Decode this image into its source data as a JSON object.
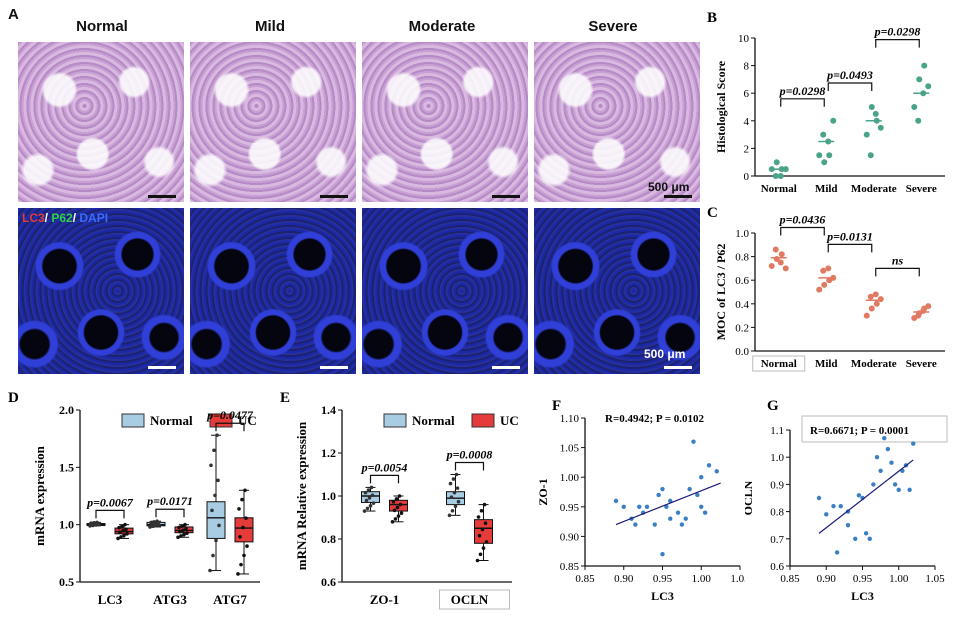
{
  "panelA": {
    "label": "A",
    "columns": [
      "Normal",
      "Mild",
      "Moderate",
      "Severe"
    ],
    "scale_he": "500 μm",
    "scale_fl": "500 μm",
    "stain_lc3": "LC3",
    "stain_sep1": "/ ",
    "stain_p62": "P62",
    "stain_sep2": "/ ",
    "stain_dapi": "DAPI"
  },
  "colors": {
    "normal_box": "#a8cde3",
    "uc_box": "#e63b3b",
    "green_dot": "#4aa38a",
    "salmon_dot": "#e07a62",
    "scatter_dot": "#3a7fc4",
    "fit_line": "#1b1b7a"
  },
  "chart_data": [
    {
      "panel": "B",
      "type": "scatter",
      "ylabel": "Histological Score",
      "ylim": [
        0,
        10
      ],
      "yticks": [
        "0",
        "2",
        "4",
        "6",
        "8",
        "10"
      ],
      "categories": [
        "Normal",
        "Mild",
        "Moderate",
        "Severe"
      ],
      "points": [
        [
          0.5,
          1,
          0.5,
          0,
          0,
          0.5
        ],
        [
          1.5,
          1,
          1.5,
          3,
          2.5,
          4
        ],
        [
          3,
          5,
          4,
          1.5,
          4.5,
          3.5
        ],
        [
          5,
          7,
          8,
          4,
          6,
          6.5
        ]
      ],
      "means": [
        0.5,
        2.5,
        4,
        6
      ],
      "comparisons": [
        {
          "from": 0,
          "to": 1,
          "label": "p=0.0298"
        },
        {
          "from": 1,
          "to": 2,
          "label": "p=0.0493"
        },
        {
          "from": 2,
          "to": 3,
          "label": "p=0.0298"
        }
      ]
    },
    {
      "panel": "C",
      "type": "scatter",
      "ylabel": "MOC of LC3 / P62",
      "ylim": [
        0.0,
        1.0
      ],
      "yticks": [
        "0.0",
        "0.2",
        "0.4",
        "0.6",
        "0.8",
        "1.0"
      ],
      "categories": [
        "Normal",
        "Mild",
        "Moderate",
        "Severe"
      ],
      "points": [
        [
          0.72,
          0.78,
          0.82,
          0.86,
          0.75,
          0.7
        ],
        [
          0.52,
          0.56,
          0.6,
          0.68,
          0.7,
          0.62
        ],
        [
          0.3,
          0.36,
          0.4,
          0.46,
          0.48,
          0.44
        ],
        [
          0.28,
          0.32,
          0.36,
          0.3,
          0.34,
          0.38
        ]
      ],
      "means": [
        0.79,
        0.62,
        0.43,
        0.33
      ],
      "comparisons": [
        {
          "from": 0,
          "to": 1,
          "label": "p=0.0436"
        },
        {
          "from": 1,
          "to": 2,
          "label": "p=0.0131"
        },
        {
          "from": 2,
          "to": 3,
          "label": "ns"
        }
      ]
    },
    {
      "panel": "D",
      "type": "box",
      "ylabel": "mRNA expression",
      "ylim": [
        0.5,
        2.0
      ],
      "yticks": [
        "0.5",
        "1.0",
        "1.5",
        "2.0"
      ],
      "categories": [
        "LC3",
        "ATG3",
        "ATG7"
      ],
      "legend": [
        "Normal",
        "UC"
      ],
      "boxes": [
        {
          "group": "LC3",
          "series": "Normal",
          "min": 0.99,
          "q1": 1.0,
          "median": 1.0,
          "q3": 1.01,
          "max": 1.02
        },
        {
          "group": "LC3",
          "series": "UC",
          "min": 0.88,
          "q1": 0.92,
          "median": 0.94,
          "q3": 0.97,
          "max": 1.0
        },
        {
          "group": "ATG3",
          "series": "Normal",
          "min": 0.98,
          "q1": 0.99,
          "median": 1.0,
          "q3": 1.02,
          "max": 1.03
        },
        {
          "group": "ATG3",
          "series": "UC",
          "min": 0.89,
          "q1": 0.93,
          "median": 0.95,
          "q3": 0.98,
          "max": 1.0
        },
        {
          "group": "ATG7",
          "series": "Normal",
          "min": 0.6,
          "q1": 0.88,
          "median": 1.06,
          "q3": 1.2,
          "max": 1.78
        },
        {
          "group": "ATG7",
          "series": "UC",
          "min": 0.57,
          "q1": 0.85,
          "median": 0.97,
          "q3": 1.06,
          "max": 1.3
        }
      ],
      "comparisons": [
        {
          "group": 0,
          "label": "p=0.0067"
        },
        {
          "group": 1,
          "label": "p=0.0171"
        },
        {
          "group": 2,
          "label": "p=0.0477"
        }
      ]
    },
    {
      "panel": "E",
      "type": "box",
      "ylabel": "mRNA Relative expression",
      "ylim": [
        0.6,
        1.4
      ],
      "yticks": [
        "0.6",
        "0.8",
        "1.0",
        "1.2",
        "1.4"
      ],
      "categories": [
        "ZO-1",
        "OCLN"
      ],
      "legend": [
        "Normal",
        "UC"
      ],
      "boxes": [
        {
          "group": "ZO-1",
          "series": "Normal",
          "min": 0.93,
          "q1": 0.97,
          "median": 1.0,
          "q3": 1.02,
          "max": 1.04
        },
        {
          "group": "ZO-1",
          "series": "UC",
          "min": 0.88,
          "q1": 0.93,
          "median": 0.96,
          "q3": 0.98,
          "max": 1.0
        },
        {
          "group": "OCLN",
          "series": "Normal",
          "min": 0.91,
          "q1": 0.96,
          "median": 0.99,
          "q3": 1.02,
          "max": 1.1
        },
        {
          "group": "OCLN",
          "series": "UC",
          "min": 0.7,
          "q1": 0.78,
          "median": 0.85,
          "q3": 0.89,
          "max": 0.96
        }
      ],
      "comparisons": [
        {
          "group": 0,
          "label": "p=0.0054"
        },
        {
          "group": 1,
          "label": "p=0.0008"
        }
      ]
    },
    {
      "panel": "F",
      "type": "scatter",
      "xlabel": "LC3",
      "ylabel": "ZO-1",
      "annotation": "R=0.4942; P = 0.0102",
      "xlim": [
        0.85,
        1.05
      ],
      "ylim": [
        0.85,
        1.1
      ],
      "xticks": [
        "0.85",
        "0.90",
        "0.95",
        "1.00",
        "1.05"
      ],
      "yticks": [
        "0.85",
        "0.90",
        "0.95",
        "1.00",
        "1.05",
        "1.10"
      ],
      "x": [
        0.89,
        0.9,
        0.91,
        0.915,
        0.92,
        0.925,
        0.93,
        0.94,
        0.945,
        0.95,
        0.95,
        0.955,
        0.96,
        0.96,
        0.97,
        0.975,
        0.98,
        0.985,
        0.99,
        0.995,
        1.0,
        1.0,
        1.005,
        1.01,
        1.02
      ],
      "y": [
        0.96,
        0.95,
        0.93,
        0.92,
        0.95,
        0.94,
        0.95,
        0.92,
        0.97,
        0.98,
        0.87,
        0.95,
        0.96,
        0.93,
        0.94,
        0.92,
        0.93,
        0.98,
        1.06,
        0.97,
        1.0,
        0.95,
        0.94,
        1.02,
        1.01
      ],
      "fit": [
        [
          0.89,
          0.92
        ],
        [
          1.025,
          0.99
        ]
      ]
    },
    {
      "panel": "G",
      "type": "scatter",
      "xlabel": "LC3",
      "ylabel": "OCLN",
      "annotation": "R=0.6671; P = 0.0001",
      "xlim": [
        0.85,
        1.05
      ],
      "ylim": [
        0.6,
        1.1
      ],
      "xticks": [
        "0.85",
        "0.90",
        "0.95",
        "1.00",
        "1.05"
      ],
      "yticks": [
        "0.6",
        "0.7",
        "0.8",
        "0.9",
        "1.0",
        "1.1"
      ],
      "x": [
        0.89,
        0.9,
        0.91,
        0.915,
        0.92,
        0.93,
        0.93,
        0.94,
        0.945,
        0.95,
        0.955,
        0.96,
        0.965,
        0.97,
        0.975,
        0.98,
        0.985,
        0.99,
        0.995,
        1.0,
        1.005,
        1.01,
        1.015,
        1.02
      ],
      "y": [
        0.85,
        0.79,
        0.82,
        0.65,
        0.82,
        0.75,
        0.8,
        0.7,
        0.86,
        0.85,
        0.72,
        0.7,
        0.9,
        1.0,
        0.95,
        1.07,
        1.03,
        0.98,
        0.9,
        0.88,
        0.95,
        0.97,
        0.88,
        1.05
      ],
      "fit": [
        [
          0.89,
          0.72
        ],
        [
          1.02,
          0.99
        ]
      ]
    }
  ]
}
